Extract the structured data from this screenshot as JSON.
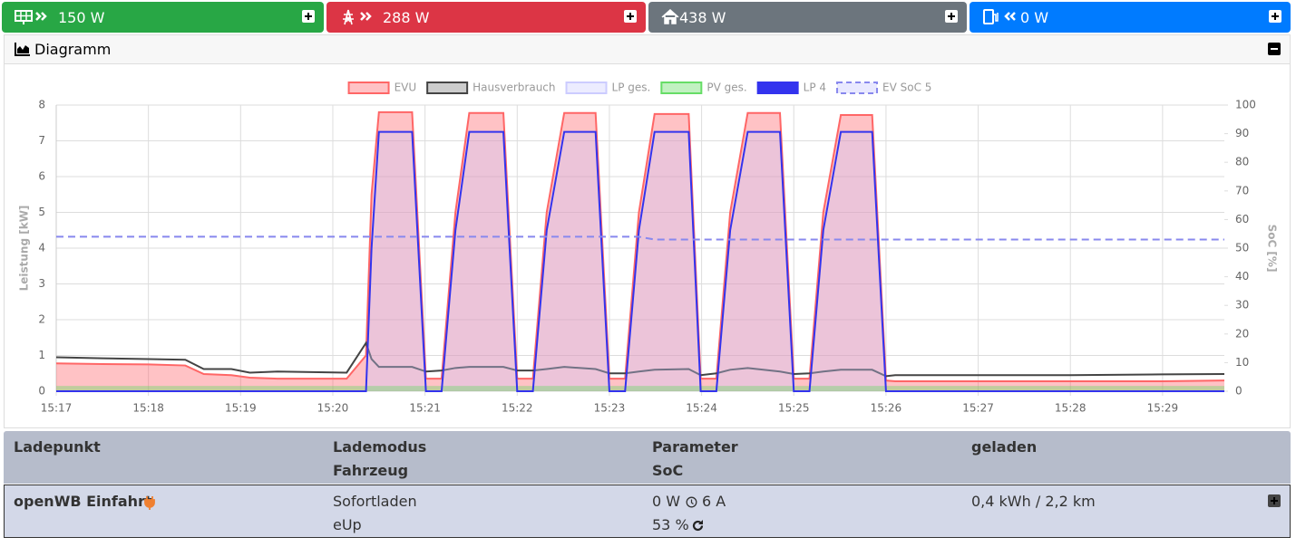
{
  "tiles": [
    "150 W",
    "288 W",
    "438 W",
    "0 W"
  ],
  "diagram": {
    "title": "Diagramm"
  },
  "chart_data": {
    "type": "line",
    "legend_position": "top",
    "grid": true,
    "ylabel": "Leistung [kW]",
    "y2label": "SoC [%]",
    "x": [
      917,
      917.5,
      918,
      918.4,
      918.6,
      918.9,
      919.1,
      919.4,
      920.15,
      920.36,
      920.42,
      920.5,
      920.86,
      921.01,
      921.18,
      921.33,
      921.48,
      921.85,
      922.0,
      922.17,
      922.32,
      922.51,
      922.85,
      923.0,
      923.17,
      923.32,
      923.49,
      923.86,
      923.99,
      924.16,
      924.31,
      924.5,
      924.85,
      925.0,
      925.17,
      925.32,
      925.51,
      925.85,
      926.0,
      926.1,
      927,
      928,
      929,
      929.67
    ],
    "xlim": [
      917,
      929.67
    ],
    "xticks": [
      {
        "value": 917,
        "label": "15:17"
      },
      {
        "value": 918,
        "label": "15:18"
      },
      {
        "value": 919,
        "label": "15:19"
      },
      {
        "value": 920,
        "label": "15:20"
      },
      {
        "value": 921,
        "label": "15:21"
      },
      {
        "value": 922,
        "label": "15:22"
      },
      {
        "value": 923,
        "label": "15:23"
      },
      {
        "value": 924,
        "label": "15:24"
      },
      {
        "value": 925,
        "label": "15:25"
      },
      {
        "value": 926,
        "label": "15:26"
      },
      {
        "value": 927,
        "label": "15:27"
      },
      {
        "value": 928,
        "label": "15:28"
      },
      {
        "value": 929,
        "label": "15:29"
      }
    ],
    "ylim": [
      0,
      8
    ],
    "yticks": [
      0,
      1,
      2,
      3,
      4,
      5,
      6,
      7,
      8
    ],
    "y2lim": [
      0,
      100
    ],
    "y2ticks": [
      0,
      10,
      20,
      30,
      40,
      50,
      60,
      70,
      80,
      90,
      100
    ],
    "series": [
      {
        "name": "EVU",
        "color": "#ff6666",
        "fill_color": "rgba(255,80,90,0.35)",
        "line": true,
        "values": [
          0.78,
          0.76,
          0.75,
          0.72,
          0.48,
          0.45,
          0.38,
          0.35,
          0.35,
          1.0,
          5.5,
          7.8,
          7.8,
          0.35,
          0.35,
          5.0,
          7.78,
          7.78,
          0.35,
          0.35,
          5.0,
          7.78,
          7.78,
          0.35,
          0.35,
          5.0,
          7.75,
          7.75,
          0.35,
          0.35,
          5.0,
          7.78,
          7.78,
          0.35,
          0.35,
          5.0,
          7.72,
          7.72,
          0.3,
          0.28,
          0.28,
          0.28,
          0.28,
          0.3
        ]
      },
      {
        "name": "Hausverbrauch",
        "color": "#444444",
        "legend_fill": "#cccccc",
        "line": true,
        "values": [
          0.95,
          0.92,
          0.9,
          0.88,
          0.62,
          0.62,
          0.52,
          0.55,
          0.52,
          1.35,
          0.9,
          0.68,
          0.68,
          0.55,
          0.58,
          0.65,
          0.68,
          0.68,
          0.58,
          0.58,
          0.62,
          0.68,
          0.62,
          0.5,
          0.5,
          0.55,
          0.6,
          0.62,
          0.45,
          0.5,
          0.6,
          0.65,
          0.55,
          0.48,
          0.5,
          0.55,
          0.6,
          0.6,
          0.42,
          0.45,
          0.45,
          0.45,
          0.47,
          0.48
        ]
      },
      {
        "name": "LP ges.",
        "color": "#ccccff",
        "fill_color": "rgba(200,200,255,0.35)",
        "line": false,
        "values": [
          0,
          0,
          0,
          0,
          0,
          0,
          0,
          0,
          0,
          0,
          4.0,
          7.25,
          7.25,
          0,
          0,
          4.5,
          7.25,
          7.25,
          0,
          0,
          4.5,
          7.25,
          7.25,
          0,
          0,
          4.5,
          7.25,
          7.25,
          0,
          0,
          4.5,
          7.25,
          7.25,
          0,
          0,
          4.5,
          7.25,
          7.25,
          0,
          0,
          0,
          0,
          0,
          0
        ]
      },
      {
        "name": "PV ges.",
        "color": "#66dd66",
        "fill_color": "rgba(100,220,100,0.4)",
        "line": false,
        "values": [
          0.15,
          0.15,
          0.15,
          0.15,
          0.15,
          0.15,
          0.15,
          0.15,
          0.15,
          0.15,
          0.15,
          0.15,
          0.15,
          0.15,
          0.15,
          0.15,
          0.15,
          0.15,
          0.15,
          0.15,
          0.15,
          0.15,
          0.15,
          0.15,
          0.15,
          0.15,
          0.15,
          0.15,
          0.15,
          0.15,
          0.15,
          0.15,
          0.15,
          0.15,
          0.15,
          0.15,
          0.15,
          0.15,
          0.15,
          0.15,
          0.15,
          0.15,
          0.15,
          0.15
        ]
      },
      {
        "name": "LP 4",
        "color": "#3333ee",
        "legend_fill": "#3333ee",
        "line": true,
        "values": [
          0,
          0,
          0,
          0,
          0,
          0,
          0,
          0,
          0,
          0,
          4.0,
          7.25,
          7.25,
          0,
          0,
          4.5,
          7.25,
          7.25,
          0,
          0,
          4.5,
          7.25,
          7.25,
          0,
          0,
          4.5,
          7.25,
          7.25,
          0,
          0,
          4.5,
          7.25,
          7.25,
          0,
          0,
          4.5,
          7.25,
          7.25,
          0,
          0,
          0,
          0,
          0,
          0
        ]
      },
      {
        "name": "EV SoC 5",
        "color": "#8888ee",
        "legend_fill": "rgba(200,200,255,0.4)",
        "line": true,
        "dash": true,
        "axis": "y2",
        "values": [
          54,
          54,
          54,
          54,
          54,
          54,
          54,
          54,
          54,
          54,
          54,
          54,
          54,
          54,
          54,
          54,
          54,
          54,
          54,
          54,
          54,
          54,
          54,
          54,
          54,
          54,
          53,
          53,
          53,
          53,
          53,
          53,
          53,
          53,
          53,
          53,
          53,
          53,
          53,
          53,
          53,
          53,
          53,
          53
        ]
      }
    ]
  },
  "table": {
    "headers": [
      [
        "Ladepunkt"
      ],
      [
        "Lademodus",
        "Fahrzeug"
      ],
      [
        "Parameter",
        "SoC"
      ],
      [
        "geladen"
      ]
    ],
    "rows": [
      [
        [
          "openWB Einfahrt"
        ],
        [
          "Sofortladen",
          "eUp"
        ],
        [
          "0 W",
          "6 A",
          "53 %"
        ],
        [
          "0,4 kWh / 2,2 km"
        ]
      ]
    ]
  }
}
